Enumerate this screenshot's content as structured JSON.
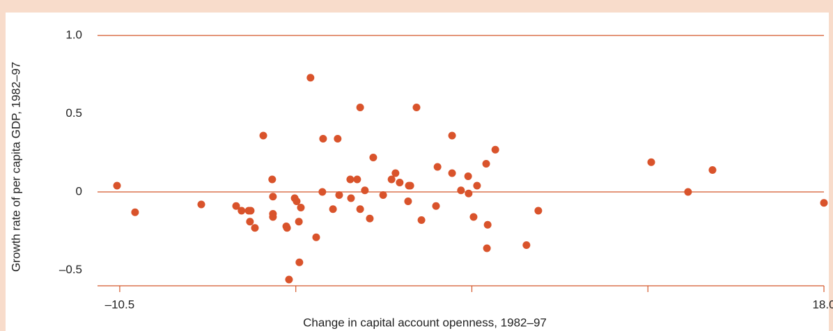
{
  "chart_data": {
    "type": "scatter",
    "xlabel": "Change in capital account openness, 1982–97",
    "ylabel": "Growth rate  of per capita GDP, 1982–97",
    "x": [
      -10.61,
      -9.88,
      -7.2,
      -5.79,
      -5.57,
      -5.28,
      -5.2,
      -5.23,
      -5.03,
      -4.69,
      -4.33,
      -4.3,
      -4.3,
      -4.3,
      -3.76,
      -3.73,
      -3.65,
      -3.42,
      -3.34,
      -3.25,
      -3.17,
      -3.23,
      -2.78,
      -2.55,
      -2.3,
      -2.27,
      -1.87,
      -1.68,
      -1.62,
      -1.17,
      -1.14,
      -0.89,
      -0.77,
      -0.77,
      -0.58,
      -0.38,
      -0.24,
      0.16,
      0.5,
      0.66,
      0.83,
      1.2,
      1.26,
      1.17,
      1.51,
      1.71,
      2.3,
      2.36,
      2.95,
      2.95,
      3.31,
      3.6,
      3.62,
      3.82,
      3.96,
      4.33,
      4.39,
      4.36,
      4.7,
      5.96,
      6.44,
      11.01,
      12.5,
      13.49,
      18.0
    ],
    "y": [
      0.04,
      -0.13,
      -0.08,
      -0.09,
      -0.12,
      -0.12,
      -0.12,
      -0.19,
      -0.23,
      0.36,
      0.08,
      -0.03,
      -0.14,
      -0.16,
      -0.22,
      -0.23,
      -0.56,
      -0.04,
      -0.06,
      -0.19,
      -0.1,
      -0.45,
      0.73,
      -0.29,
      0.0,
      0.34,
      -0.11,
      0.34,
      -0.02,
      0.08,
      -0.04,
      0.08,
      -0.11,
      0.54,
      0.01,
      -0.17,
      0.22,
      -0.02,
      0.08,
      0.12,
      0.06,
      0.04,
      0.04,
      -0.06,
      0.54,
      -0.18,
      -0.09,
      0.16,
      0.36,
      0.12,
      0.01,
      0.1,
      -0.01,
      -0.16,
      0.04,
      0.18,
      -0.21,
      -0.36,
      0.27,
      -0.34,
      -0.12,
      0.19,
      0.0,
      0.14,
      -0.07
    ],
    "color": "#d9532b",
    "xlim": [
      -11.4,
      18.0
    ],
    "xticks": [
      {
        "value": -10.5,
        "label": "–10.5"
      },
      {
        "value": 18.0,
        "label": "18.0"
      }
    ],
    "xminorticks": [
      -3.375,
      3.75,
      10.875
    ],
    "ylim": [
      -0.6,
      1.0
    ],
    "yticks": [
      {
        "value": 1.0,
        "label": "1.0"
      },
      0.5,
      0,
      {
        "value": -0.5,
        "label": "–0.5"
      }
    ],
    "hlines": [
      1.0,
      0
    ]
  }
}
